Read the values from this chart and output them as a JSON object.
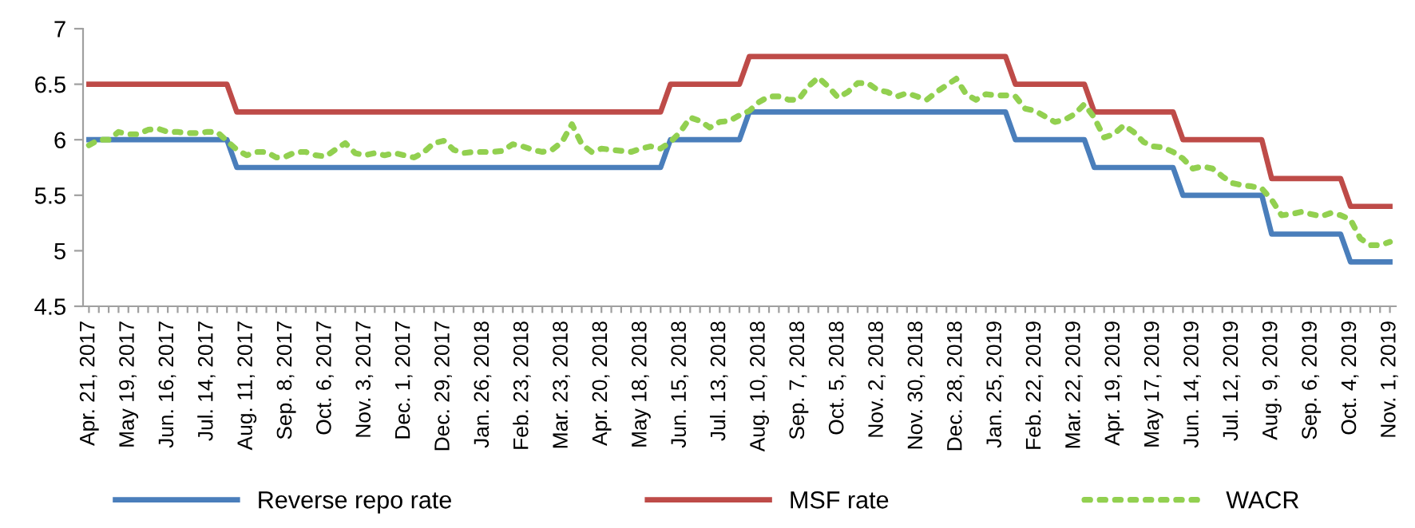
{
  "chart_data": {
    "type": "line",
    "categories": [
      "Apr. 21, 2017",
      null,
      null,
      null,
      "May 19, 2017",
      null,
      null,
      null,
      "Jun. 16, 2017",
      null,
      null,
      null,
      "Jul. 14, 2017",
      null,
      null,
      null,
      "Aug. 11, 2017",
      null,
      null,
      null,
      "Sep. 8, 2017",
      null,
      null,
      null,
      "Oct. 6, 2017",
      null,
      null,
      null,
      "Nov. 3, 2017",
      null,
      null,
      null,
      "Dec. 1, 2017",
      null,
      null,
      null,
      "Dec. 29, 2017",
      null,
      null,
      null,
      "Jan. 26, 2018",
      null,
      null,
      null,
      "Feb. 23, 2018",
      null,
      null,
      null,
      "Mar. 23, 2018",
      null,
      null,
      null,
      "Apr. 20, 2018",
      null,
      null,
      null,
      "May 18, 2018",
      null,
      null,
      null,
      "Jun. 15, 2018",
      null,
      null,
      null,
      "Jul. 13, 2018",
      null,
      null,
      null,
      "Aug. 10, 2018",
      null,
      null,
      null,
      "Sep. 7, 2018",
      null,
      null,
      null,
      "Oct. 5, 2018",
      null,
      null,
      null,
      "Nov. 2, 2018",
      null,
      null,
      null,
      "Nov. 30, 2018",
      null,
      null,
      null,
      "Dec. 28, 2018",
      null,
      null,
      null,
      "Jan. 25, 2019",
      null,
      null,
      null,
      "Feb. 22, 2019",
      null,
      null,
      null,
      "Mar. 22, 2019",
      null,
      null,
      null,
      "Apr. 19, 2019",
      null,
      null,
      null,
      "May 17, 2019",
      null,
      null,
      null,
      "Jun. 14, 2019",
      null,
      null,
      null,
      "Jul. 12, 2019",
      null,
      null,
      null,
      "Aug. 9, 2019",
      null,
      null,
      null,
      "Sep. 6, 2019",
      null,
      null,
      null,
      "Oct. 4, 2019",
      null,
      null,
      null,
      "Nov. 1, 2019"
    ],
    "series": [
      {
        "name": "Reverse repo rate",
        "color": "#4a7ebb",
        "line_style": "solid",
        "values": [
          6,
          6,
          6,
          6,
          6,
          6,
          6,
          6,
          6,
          6,
          6,
          6,
          6,
          6,
          6,
          5.75,
          5.75,
          5.75,
          5.75,
          5.75,
          5.75,
          5.75,
          5.75,
          5.75,
          5.75,
          5.75,
          5.75,
          5.75,
          5.75,
          5.75,
          5.75,
          5.75,
          5.75,
          5.75,
          5.75,
          5.75,
          5.75,
          5.75,
          5.75,
          5.75,
          5.75,
          5.75,
          5.75,
          5.75,
          5.75,
          5.75,
          5.75,
          5.75,
          5.75,
          5.75,
          5.75,
          5.75,
          5.75,
          5.75,
          5.75,
          5.75,
          5.75,
          5.75,
          5.75,
          6,
          6,
          6,
          6,
          6,
          6,
          6,
          6,
          6.25,
          6.25,
          6.25,
          6.25,
          6.25,
          6.25,
          6.25,
          6.25,
          6.25,
          6.25,
          6.25,
          6.25,
          6.25,
          6.25,
          6.25,
          6.25,
          6.25,
          6.25,
          6.25,
          6.25,
          6.25,
          6.25,
          6.25,
          6.25,
          6.25,
          6.25,
          6.25,
          6,
          6,
          6,
          6,
          6,
          6,
          6,
          6,
          5.75,
          5.75,
          5.75,
          5.75,
          5.75,
          5.75,
          5.75,
          5.75,
          5.75,
          5.5,
          5.5,
          5.5,
          5.5,
          5.5,
          5.5,
          5.5,
          5.5,
          5.5,
          5.15,
          5.15,
          5.15,
          5.15,
          5.15,
          5.15,
          5.15,
          5.15,
          4.9,
          4.9,
          4.9,
          4.9,
          4.9
        ]
      },
      {
        "name": "MSF rate",
        "color": "#be4b48",
        "line_style": "solid",
        "values": [
          6.5,
          6.5,
          6.5,
          6.5,
          6.5,
          6.5,
          6.5,
          6.5,
          6.5,
          6.5,
          6.5,
          6.5,
          6.5,
          6.5,
          6.5,
          6.25,
          6.25,
          6.25,
          6.25,
          6.25,
          6.25,
          6.25,
          6.25,
          6.25,
          6.25,
          6.25,
          6.25,
          6.25,
          6.25,
          6.25,
          6.25,
          6.25,
          6.25,
          6.25,
          6.25,
          6.25,
          6.25,
          6.25,
          6.25,
          6.25,
          6.25,
          6.25,
          6.25,
          6.25,
          6.25,
          6.25,
          6.25,
          6.25,
          6.25,
          6.25,
          6.25,
          6.25,
          6.25,
          6.25,
          6.25,
          6.25,
          6.25,
          6.25,
          6.25,
          6.5,
          6.5,
          6.5,
          6.5,
          6.5,
          6.5,
          6.5,
          6.5,
          6.75,
          6.75,
          6.75,
          6.75,
          6.75,
          6.75,
          6.75,
          6.75,
          6.75,
          6.75,
          6.75,
          6.75,
          6.75,
          6.75,
          6.75,
          6.75,
          6.75,
          6.75,
          6.75,
          6.75,
          6.75,
          6.75,
          6.75,
          6.75,
          6.75,
          6.75,
          6.75,
          6.5,
          6.5,
          6.5,
          6.5,
          6.5,
          6.5,
          6.5,
          6.5,
          6.25,
          6.25,
          6.25,
          6.25,
          6.25,
          6.25,
          6.25,
          6.25,
          6.25,
          6,
          6,
          6,
          6,
          6,
          6,
          6,
          6,
          6,
          5.65,
          5.65,
          5.65,
          5.65,
          5.65,
          5.65,
          5.65,
          5.65,
          5.4,
          5.4,
          5.4,
          5.4,
          5.4
        ]
      },
      {
        "name": "WACR",
        "color": "#92d050",
        "line_style": "dotted",
        "values": [
          5.95,
          6.0,
          6.0,
          6.07,
          6.05,
          6.05,
          6.09,
          6.1,
          6.07,
          6.07,
          6.06,
          6.06,
          6.07,
          6.07,
          5.99,
          5.91,
          5.86,
          5.89,
          5.89,
          5.84,
          5.85,
          5.89,
          5.89,
          5.86,
          5.85,
          5.91,
          5.97,
          5.88,
          5.86,
          5.88,
          5.86,
          5.88,
          5.86,
          5.84,
          5.89,
          5.97,
          5.99,
          5.91,
          5.88,
          5.89,
          5.89,
          5.89,
          5.9,
          5.96,
          5.94,
          5.91,
          5.89,
          5.91,
          5.98,
          6.14,
          5.96,
          5.89,
          5.92,
          5.91,
          5.9,
          5.89,
          5.92,
          5.94,
          5.92,
          5.98,
          6.07,
          6.2,
          6.17,
          6.11,
          6.16,
          6.17,
          6.22,
          6.26,
          6.34,
          6.39,
          6.39,
          6.36,
          6.36,
          6.48,
          6.56,
          6.48,
          6.38,
          6.43,
          6.51,
          6.51,
          6.45,
          6.43,
          6.39,
          6.42,
          6.39,
          6.36,
          6.43,
          6.49,
          6.55,
          6.41,
          6.36,
          6.41,
          6.4,
          6.4,
          6.39,
          6.28,
          6.26,
          6.21,
          6.16,
          6.18,
          6.23,
          6.32,
          6.2,
          6.02,
          6.05,
          6.13,
          6.07,
          5.98,
          5.94,
          5.93,
          5.89,
          5.83,
          5.74,
          5.76,
          5.74,
          5.67,
          5.61,
          5.59,
          5.58,
          5.56,
          5.46,
          5.32,
          5.33,
          5.35,
          5.33,
          5.31,
          5.34,
          5.32,
          5.28,
          5.11,
          5.05,
          5.05,
          5.08
        ]
      }
    ],
    "ylim": [
      4.5,
      7
    ],
    "yticks": [
      4.5,
      5,
      5.5,
      6,
      6.5,
      7
    ],
    "grid": false,
    "legend": "bottom",
    "marker": "none"
  }
}
